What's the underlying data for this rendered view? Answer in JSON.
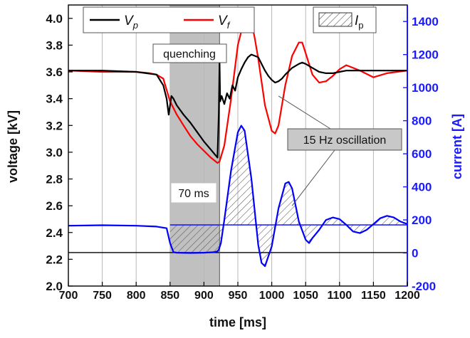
{
  "chart_data": {
    "type": "line",
    "xlabel": "time [ms]",
    "ylabel_left": "voltage [kV]",
    "ylabel_right": "current [A]",
    "xlim": [
      700,
      1200
    ],
    "ylim_left": [
      2.0,
      4.1
    ],
    "ylim_right": [
      -200,
      1500
    ],
    "x_ticks": [
      "700",
      "750",
      "800",
      "850",
      "900",
      "950",
      "1000",
      "1050",
      "1100",
      "1150",
      "1200"
    ],
    "y_left_ticks": [
      "2.0",
      "2.2",
      "2.4",
      "2.6",
      "2.8",
      "3.0",
      "3.2",
      "3.4",
      "3.6",
      "3.8",
      "4.0"
    ],
    "y_right_ticks": [
      "-200",
      "0",
      "200",
      "400",
      "600",
      "800",
      "1000",
      "1200",
      "1400"
    ],
    "grid_vertical": true,
    "colors": {
      "Vp": "#000000",
      "Vf": "#ff0000",
      "Ip": "#0000ff",
      "quench_band": "#c0c0c0",
      "right_axis": "#1a1aff"
    },
    "legend": {
      "Vp": {
        "main": "V",
        "sub": "p"
      },
      "Vf": {
        "main": "V",
        "sub": "f"
      },
      "Ip": {
        "main": "I",
        "sub": "p"
      }
    },
    "quench_region": {
      "x_start": 850,
      "x_end": 923,
      "label": "quenching"
    },
    "annotations": {
      "duration": "70 ms",
      "oscillation": "15 Hz oscillation",
      "oscillation_targets": [
        [
          1010,
          3.42
        ],
        [
          1030,
          2.6
        ]
      ]
    },
    "hline_left_kV": 2.25,
    "current_baseline_A": 170,
    "series": [
      {
        "name": "Vp",
        "axis": "left",
        "x": [
          700,
          750,
          800,
          830,
          840,
          845,
          848,
          850,
          852,
          855,
          860,
          870,
          880,
          890,
          900,
          910,
          920,
          922,
          923,
          924,
          926,
          930,
          934,
          938,
          942,
          946,
          950,
          955,
          960,
          965,
          970,
          975,
          980,
          985,
          990,
          995,
          1000,
          1005,
          1010,
          1015,
          1020,
          1030,
          1040,
          1045,
          1050,
          1060,
          1070,
          1080,
          1090,
          1100,
          1110,
          1120,
          1140,
          1160,
          1180,
          1200
        ],
        "y": [
          3.61,
          3.61,
          3.6,
          3.58,
          3.5,
          3.4,
          3.28,
          3.35,
          3.42,
          3.4,
          3.35,
          3.28,
          3.22,
          3.15,
          3.08,
          3.02,
          2.96,
          3.3,
          3.68,
          3.38,
          3.42,
          3.36,
          3.44,
          3.4,
          3.5,
          3.46,
          3.56,
          3.62,
          3.67,
          3.71,
          3.73,
          3.72,
          3.71,
          3.66,
          3.61,
          3.57,
          3.54,
          3.52,
          3.53,
          3.55,
          3.58,
          3.63,
          3.66,
          3.67,
          3.66,
          3.63,
          3.6,
          3.59,
          3.59,
          3.6,
          3.61,
          3.61,
          3.61,
          3.61,
          3.61,
          3.61
        ]
      },
      {
        "name": "Vf",
        "axis": "left",
        "x": [
          700,
          750,
          800,
          820,
          830,
          840,
          850,
          860,
          870,
          880,
          890,
          900,
          910,
          920,
          923,
          930,
          940,
          950,
          960,
          965,
          970,
          975,
          980,
          990,
          1000,
          1005,
          1010,
          1020,
          1030,
          1040,
          1045,
          1050,
          1060,
          1070,
          1080,
          1090,
          1100,
          1110,
          1130,
          1150,
          1170,
          1200
        ],
        "y": [
          3.61,
          3.6,
          3.6,
          3.59,
          3.58,
          3.55,
          3.38,
          3.28,
          3.2,
          3.12,
          3.06,
          3.01,
          2.96,
          2.92,
          2.93,
          3.05,
          3.4,
          3.8,
          4.0,
          4.03,
          3.98,
          3.85,
          3.7,
          3.35,
          3.16,
          3.14,
          3.2,
          3.5,
          3.72,
          3.82,
          3.82,
          3.74,
          3.58,
          3.52,
          3.53,
          3.57,
          3.62,
          3.65,
          3.61,
          3.56,
          3.59,
          3.61
        ]
      },
      {
        "name": "Ip",
        "axis": "right",
        "x": [
          700,
          750,
          800,
          830,
          845,
          850,
          855,
          860,
          880,
          900,
          915,
          920,
          922,
          925,
          930,
          940,
          950,
          955,
          960,
          970,
          980,
          985,
          990,
          1000,
          1010,
          1020,
          1025,
          1030,
          1040,
          1050,
          1055,
          1060,
          1070,
          1080,
          1090,
          1100,
          1110,
          1120,
          1130,
          1140,
          1150,
          1160,
          1170,
          1180,
          1190,
          1200
        ],
        "y": [
          165,
          168,
          165,
          160,
          150,
          60,
          5,
          2,
          0,
          2,
          5,
          10,
          20,
          60,
          200,
          500,
          730,
          770,
          740,
          450,
          50,
          -60,
          -80,
          40,
          270,
          420,
          430,
          390,
          190,
          80,
          60,
          90,
          140,
          200,
          215,
          205,
          170,
          130,
          120,
          140,
          175,
          210,
          225,
          215,
          190,
          175
        ]
      }
    ]
  }
}
